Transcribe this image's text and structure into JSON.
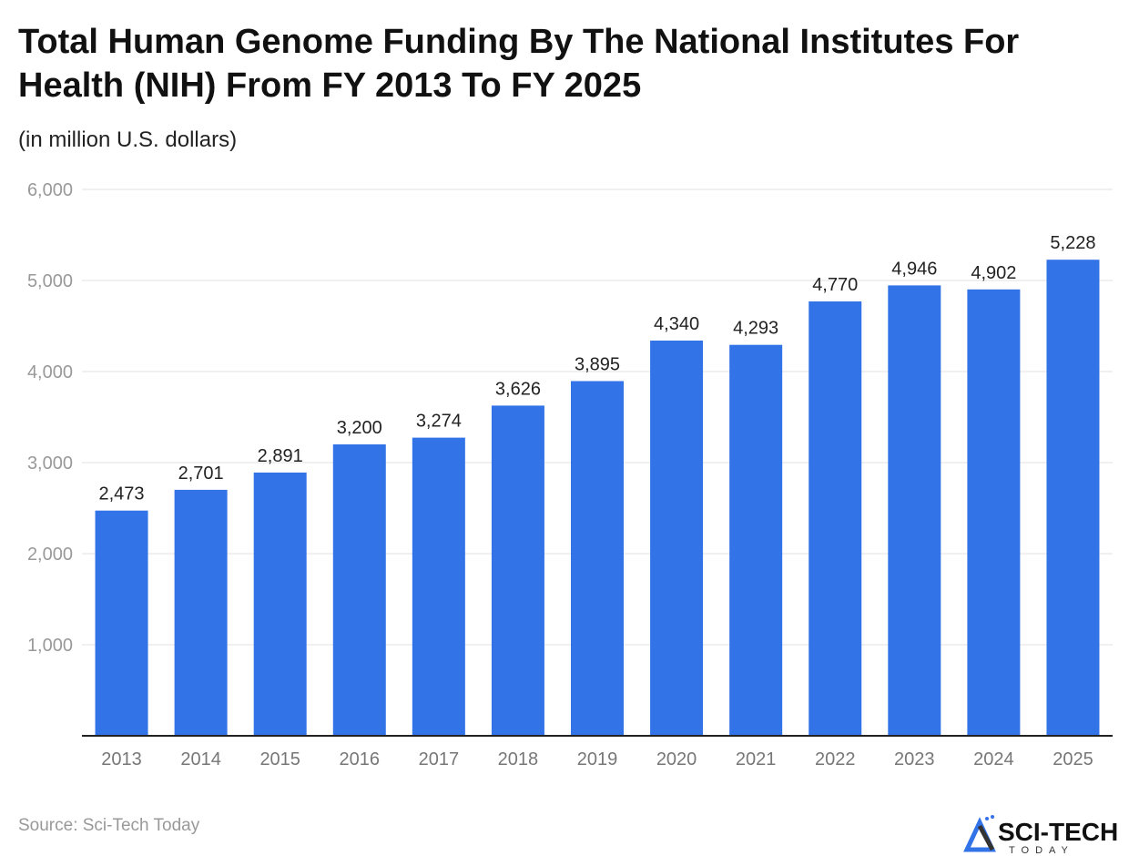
{
  "chart_data": {
    "type": "bar",
    "title": "Total Human Genome Funding By The National Institutes For Health (NIH) From FY 2013 To FY 2025",
    "subtitle": "(in million U.S. dollars)",
    "categories": [
      "2013",
      "2014",
      "2015",
      "2016",
      "2017",
      "2018",
      "2019",
      "2020",
      "2021",
      "2022",
      "2023",
      "2024",
      "2025"
    ],
    "values": [
      2473,
      2701,
      2891,
      3200,
      3274,
      3626,
      3895,
      4340,
      4293,
      4770,
      4946,
      4902,
      5228
    ],
    "data_labels": [
      "2,473",
      "2,701",
      "2,891",
      "3,200",
      "3,274",
      "3,626",
      "3,895",
      "4,340",
      "4,293",
      "4,770",
      "4,946",
      "4,902",
      "5,228"
    ],
    "ylim": [
      0,
      6000
    ],
    "yticks": [
      1000,
      2000,
      3000,
      4000,
      5000,
      6000
    ],
    "ytick_labels": [
      "1,000",
      "2,000",
      "3,000",
      "4,000",
      "5,000",
      "6,000"
    ],
    "xlabel": "",
    "ylabel": "",
    "grid": true,
    "bar_color": "#3373e8"
  },
  "source": "Source: Sci-Tech Today",
  "logo": {
    "text": "SCI-TECH",
    "subtext": "TODAY"
  }
}
